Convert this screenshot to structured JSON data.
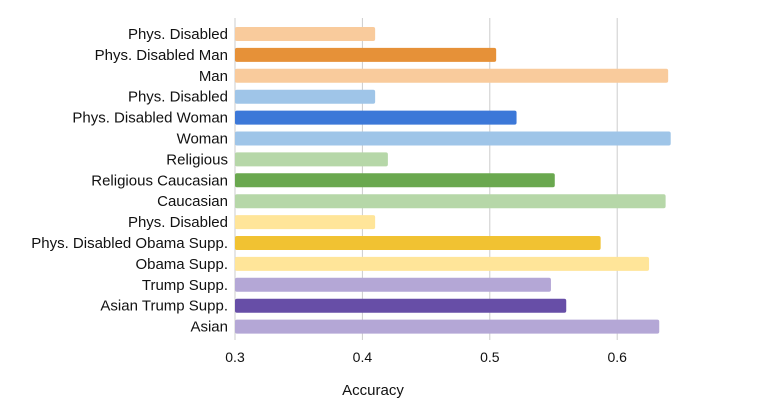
{
  "chart_data": {
    "type": "bar",
    "orientation": "horizontal",
    "title": "",
    "xlabel": "Accuracy",
    "ylabel": "",
    "xlim": [
      0.3,
      0.65
    ],
    "xticks": [
      "0.3",
      "0.4",
      "0.5",
      "0.6"
    ],
    "xtick_values": [
      0.3,
      0.4,
      0.5,
      0.6
    ],
    "grid": true,
    "categories": [
      "Phys. Disabled",
      "Phys. Disabled Man",
      "Man",
      "Phys. Disabled",
      "Phys. Disabled Woman",
      "Woman",
      "Religious",
      "Religious Caucasian",
      "Caucasian",
      "Phys. Disabled",
      "Phys. Disabled Obama Supp.",
      "Obama Supp.",
      "Trump Supp.",
      "Asian Trump Supp.",
      "Asian"
    ],
    "values": [
      0.41,
      0.505,
      0.64,
      0.41,
      0.521,
      0.642,
      0.42,
      0.551,
      0.638,
      0.41,
      0.587,
      0.625,
      0.548,
      0.56,
      0.633
    ],
    "colors": [
      "#f9cb9c",
      "#e69138",
      "#f9cb9c",
      "#9fc5e8",
      "#3c78d8",
      "#9fc5e8",
      "#b6d7a8",
      "#6aa84f",
      "#b6d7a8",
      "#ffe599",
      "#f1c232",
      "#ffe599",
      "#b4a7d6",
      "#674ea7",
      "#b4a7d6"
    ]
  }
}
